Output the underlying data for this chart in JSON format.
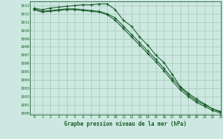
{
  "title": "Graphe pression niveau de la mer (hPa)",
  "background_color": "#cce8e0",
  "grid_color": "#aaccbb",
  "line_color": "#1a5c2a",
  "xlim": [
    -0.5,
    23
  ],
  "ylim": [
    999.8,
    1013.5
  ],
  "xticks": [
    0,
    1,
    2,
    3,
    4,
    5,
    6,
    7,
    8,
    9,
    10,
    11,
    12,
    13,
    14,
    15,
    16,
    17,
    18,
    19,
    20,
    21,
    22,
    23
  ],
  "yticks": [
    1000,
    1001,
    1002,
    1003,
    1004,
    1005,
    1006,
    1007,
    1008,
    1009,
    1010,
    1011,
    1012,
    1013
  ],
  "series1_x": [
    0,
    1,
    2,
    3,
    4,
    5,
    6,
    7,
    8,
    9,
    10,
    11,
    12,
    13,
    14,
    15,
    16,
    17,
    18,
    19,
    20,
    21,
    22,
    23
  ],
  "series1_y": [
    1012.7,
    1012.5,
    1012.7,
    1012.8,
    1012.9,
    1013.0,
    1013.1,
    1013.1,
    1013.2,
    1013.2,
    1012.5,
    1011.2,
    1010.5,
    1009.2,
    1008.2,
    1007.0,
    1006.1,
    1004.7,
    1003.2,
    1002.4,
    1001.7,
    1001.1,
    1000.5,
    1000.1
  ],
  "series2_x": [
    0,
    1,
    2,
    3,
    4,
    5,
    6,
    7,
    8,
    9,
    10,
    11,
    12,
    13,
    14,
    15,
    16,
    17,
    18,
    19,
    20,
    21,
    22,
    23
  ],
  "series2_y": [
    1012.6,
    1012.3,
    1012.4,
    1012.5,
    1012.6,
    1012.6,
    1012.5,
    1012.4,
    1012.3,
    1012.0,
    1011.5,
    1010.5,
    1009.5,
    1008.5,
    1007.5,
    1006.5,
    1005.4,
    1004.2,
    1003.1,
    1002.2,
    1001.5,
    1001.0,
    1000.5,
    1000.2
  ],
  "series3_x": [
    0,
    1,
    2,
    3,
    4,
    5,
    6,
    7,
    8,
    9,
    10,
    11,
    12,
    13,
    14,
    15,
    16,
    17,
    18,
    19,
    20,
    21,
    22,
    23
  ],
  "series3_y": [
    1012.5,
    1012.2,
    1012.3,
    1012.4,
    1012.5,
    1012.5,
    1012.4,
    1012.3,
    1012.2,
    1011.9,
    1011.2,
    1010.2,
    1009.2,
    1008.2,
    1007.2,
    1006.2,
    1005.1,
    1003.9,
    1002.8,
    1002.0,
    1001.3,
    1000.8,
    1000.3,
    1000.0
  ]
}
